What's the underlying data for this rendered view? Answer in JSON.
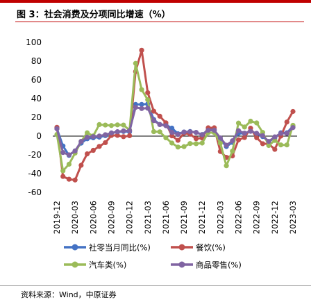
{
  "title": "图 3：社会消费及分项同比增速（%）",
  "source": "资料来源：Wind，中原证券",
  "colors": {
    "accent": "#c00000",
    "retail_total": "#4472c4",
    "catering": "#c0504d",
    "auto": "#9bbb59",
    "goods": "#8064a2"
  },
  "chart_data": {
    "type": "line",
    "title": "",
    "xlabel": "",
    "ylabel": "",
    "ylim": [
      -60,
      100
    ],
    "yticks": [
      "100",
      "80",
      "60",
      "40",
      "20",
      "0",
      "-20",
      "-40",
      "-60"
    ],
    "xticks": [
      "2019-12",
      "2020-03",
      "2020-06",
      "2020-09",
      "2020-12",
      "2021-03",
      "2021-06",
      "2021-09",
      "2021-12",
      "2022-03",
      "2022-06",
      "2022-09",
      "2022-12",
      "2023-03"
    ],
    "grid": false,
    "legend_position": "bottom",
    "x": [
      "2019-12",
      "2020-01",
      "2020-02",
      "2020-03",
      "2020-04",
      "2020-05",
      "2020-06",
      "2020-07",
      "2020-08",
      "2020-09",
      "2020-10",
      "2020-11",
      "2020-12",
      "2021-01",
      "2021-02",
      "2021-03",
      "2021-04",
      "2021-05",
      "2021-06",
      "2021-07",
      "2021-08",
      "2021-09",
      "2021-10",
      "2021-11",
      "2021-12",
      "2022-01",
      "2022-02",
      "2022-03",
      "2022-04",
      "2022-05",
      "2022-06",
      "2022-07",
      "2022-08",
      "2022-09",
      "2022-10",
      "2022-11",
      "2022-12",
      "2023-01",
      "2023-02",
      "2023-03"
    ],
    "series": [
      {
        "name": "社零当月同比(%)",
        "color": "#4472c4",
        "values": [
          8.0,
          -10.5,
          -20.5,
          -15.8,
          -7.5,
          -2.8,
          -1.8,
          -1.1,
          0.5,
          3.3,
          4.3,
          5.0,
          4.6,
          33.8,
          33.8,
          34.2,
          17.7,
          12.4,
          12.1,
          8.5,
          2.5,
          4.4,
          4.9,
          3.9,
          1.7,
          6.7,
          6.7,
          -3.5,
          -11.1,
          -6.7,
          3.1,
          2.7,
          5.4,
          2.5,
          -0.5,
          -5.9,
          -1.8,
          3.5,
          3.5,
          10.6
        ]
      },
      {
        "name": "餐饮(%)",
        "color": "#c0504d",
        "values": [
          9.4,
          -43.0,
          -46.0,
          -46.8,
          -31.1,
          -18.9,
          -15.2,
          -11.0,
          -7.0,
          0.7,
          0.8,
          -0.6,
          0.4,
          68.9,
          91.6,
          46.4,
          26.6,
          21.2,
          14.2,
          0.3,
          -4.5,
          3.1,
          2.0,
          -2.7,
          -2.0,
          8.9,
          8.9,
          -16.4,
          -22.7,
          -21.1,
          -4.0,
          -1.5,
          8.4,
          -1.7,
          -8.1,
          -8.4,
          -14.1,
          0.0,
          15.0,
          26.3
        ]
      },
      {
        "name": "汽车类(%)",
        "color": "#9bbb59",
        "values": [
          1.8,
          -37.0,
          -30.0,
          -18.1,
          -5.6,
          3.5,
          0.2,
          12.3,
          11.8,
          11.3,
          12.0,
          11.8,
          6.4,
          77.6,
          49.6,
          38.8,
          4.8,
          4.6,
          -1.8,
          -7.4,
          -11.7,
          -11.2,
          -7.9,
          -8.1,
          -7.4,
          3.7,
          3.7,
          -7.5,
          -31.6,
          -16.0,
          13.9,
          9.7,
          15.9,
          14.1,
          3.9,
          -10.0,
          -4.6,
          -9.4,
          -9.4,
          11.5
        ]
      },
      {
        "name": "商品零售(%)",
        "color": "#8064a2",
        "values": [
          7.9,
          -17.5,
          -20.0,
          -15.8,
          -5.7,
          -1.2,
          -0.5,
          0.1,
          1.5,
          3.4,
          4.7,
          5.6,
          5.8,
          30.7,
          29.4,
          29.8,
          16.5,
          12.3,
          11.1,
          4.0,
          1.8,
          4.3,
          4.6,
          3.9,
          1.5,
          6.2,
          6.2,
          -1.9,
          -9.7,
          -5.0,
          5.8,
          3.1,
          5.1,
          3.0,
          0.5,
          -5.6,
          -0.8,
          2.9,
          2.9,
          9.1
        ]
      }
    ]
  }
}
